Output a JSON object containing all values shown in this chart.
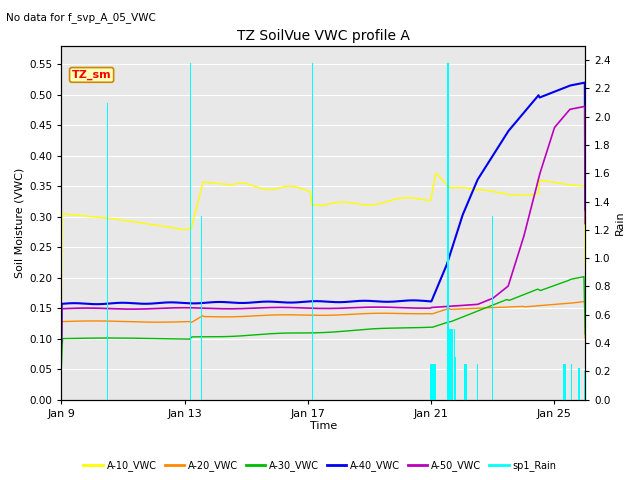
{
  "title": "TZ SoilVue VWC profile A",
  "top_left_note": "No data for f_svp_A_05_VWC",
  "annotation_box": "TZ_sm",
  "xlabel": "Time",
  "ylabel_left": "Soil Moisture (VWC)",
  "ylabel_right": "Rain",
  "xlim_days": [
    0,
    17
  ],
  "ylim_left": [
    0.0,
    0.58
  ],
  "ylim_right": [
    0.0,
    2.5
  ],
  "yticks_left": [
    0.0,
    0.05,
    0.1,
    0.15,
    0.2,
    0.25,
    0.3,
    0.35,
    0.4,
    0.45,
    0.5,
    0.55
  ],
  "yticks_right": [
    0.0,
    0.2,
    0.4,
    0.6,
    0.8,
    1.0,
    1.2,
    1.4,
    1.6,
    1.8,
    2.0,
    2.2,
    2.4
  ],
  "xtick_labels": [
    "Jan 9",
    "Jan 13",
    "Jan 17",
    "Jan 21",
    "Jan 25"
  ],
  "xtick_positions": [
    0,
    4,
    8,
    12,
    16
  ],
  "bg_color": "#e8e8e8",
  "fig_color": "#ffffff",
  "colors": {
    "A10": "#ffff00",
    "A20": "#ff8800",
    "A30": "#00bb00",
    "A40": "#0000ee",
    "A50": "#bb00bb",
    "Rain": "#00ffff"
  },
  "legend_labels": [
    "A-10_VWC",
    "A-20_VWC",
    "A-30_VWC",
    "A-40_VWC",
    "A-50_VWC",
    "sp1_Rain"
  ],
  "legend_colors": [
    "#ffff00",
    "#ff8800",
    "#00bb00",
    "#0000ee",
    "#bb00bb",
    "#00ffff"
  ],
  "rain_times": [
    1.5,
    4.2,
    4.55,
    8.15,
    12.0,
    12.05,
    12.1,
    12.15,
    12.55,
    12.6,
    12.65,
    12.7,
    12.75,
    12.8,
    13.1,
    13.15,
    13.5,
    14.0,
    16.3,
    16.35,
    16.55,
    16.8,
    17.0
  ],
  "rain_heights": [
    2.1,
    2.38,
    1.3,
    2.38,
    0.25,
    0.25,
    0.25,
    0.25,
    2.38,
    0.5,
    0.5,
    0.5,
    0.5,
    0.3,
    0.25,
    0.25,
    0.25,
    1.3,
    0.25,
    0.25,
    0.25,
    0.22,
    0.2
  ]
}
